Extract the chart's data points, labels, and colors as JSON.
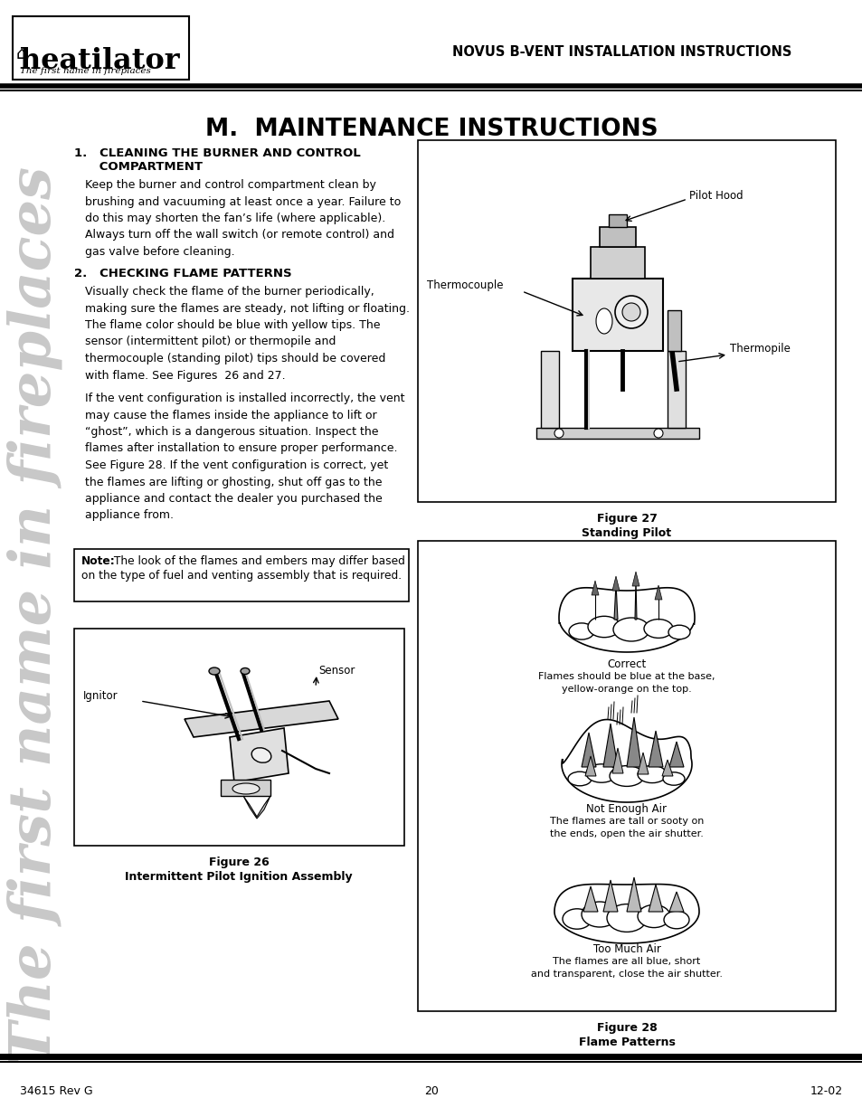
{
  "page_bg": "#ffffff",
  "header_title": "NOVUS B-VENT INSTALLATION INSTRUCTIONS",
  "main_title": "M.  MAINTENANCE INSTRUCTIONS",
  "section1_heading_line1": "1.   CLEANING THE BURNER AND CONTROL",
  "section1_heading_line2": "      COMPARTMENT",
  "section1_body": "Keep the burner and control compartment clean by\nbrushing and vacuuming at least once a year. Failure to\ndo this may shorten the fan’s life (where applicable).\nAlways turn off the wall switch (or remote control) and\ngas valve before cleaning.",
  "section2_heading": "2.   CHECKING FLAME PATTERNS",
  "section2_body1": "Visually check the flame of the burner periodically,\nmaking sure the flames are steady, not lifting or floating.\nThe flame color should be blue with yellow tips. The\nsensor (intermittent pilot) or thermopile and\nthermocouple (standing pilot) tips should be covered\nwith flame. See Figures  26 and 27.",
  "section2_body2": "If the vent configuration is installed incorrectly, the vent\nmay cause the flames inside the appliance to lift or\n“ghost”, which is a dangerous situation. Inspect the\nflames after installation to ensure proper performance.\nSee Figure 28. If the vent configuration is correct, yet\nthe flames are lifting or ghosting, shut off gas to the\nappliance and contact the dealer you purchased the\nappliance from.",
  "note_bold": "Note:",
  "note_rest": " The look of the flames and embers may differ based\non the type of fuel and venting assembly that is required.",
  "fig26_caption_line1": "Figure 26",
  "fig26_caption_line2": "Intermittent Pilot Ignition Assembly",
  "fig26_label_sensor": "Sensor",
  "fig26_label_ignitor": "Ignitor",
  "fig27_caption_line1": "Figure 27",
  "fig27_caption_line2": "Standing Pilot",
  "fig27_label_pilothood": "Pilot Hood",
  "fig27_label_thermocouple": "Thermocouple",
  "fig27_label_thermopile": "Thermopile",
  "fig28_caption_line1": "Figure 28",
  "fig28_caption_line2": "Flame Patterns",
  "flame_correct_title": "Correct",
  "flame_correct_body": "Flames should be blue at the base,\nyellow-orange on the top.",
  "flame_notair_title": "Not Enough Air",
  "flame_notair_body": "The flames are tall or sooty on\nthe ends, open the air shutter.",
  "flame_toomuch_title": "Too Much Air",
  "flame_toomuch_body": "The flames are all blue, short\nand transparent, close the air shutter.",
  "footer_left": "34615 Rev G",
  "footer_center": "20",
  "footer_right": "12-02",
  "sidebar_text": "The first name in fireplaces"
}
